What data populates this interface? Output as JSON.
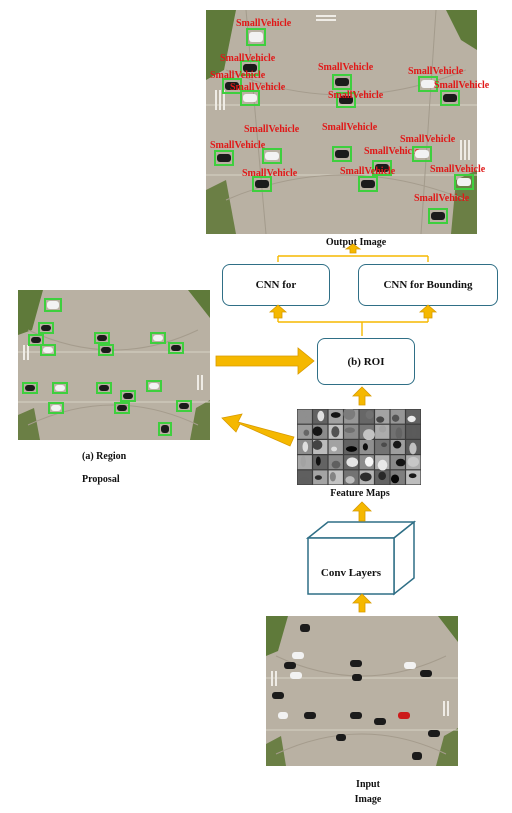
{
  "output_image": {
    "caption": "Output Image",
    "detections": [
      {
        "label": "SmallVehicle"
      },
      {
        "label": "SmallVehicle"
      },
      {
        "label": "SmallVehicle"
      },
      {
        "label": "SmallVehicle"
      },
      {
        "label": "SmallVehicle"
      },
      {
        "label": "SmallVehicle"
      },
      {
        "label": "SmallVehicle"
      },
      {
        "label": "SmallVehicle"
      },
      {
        "label": "SmallVehicle"
      },
      {
        "label": "SmallVehicle"
      },
      {
        "label": "SmallVehicle"
      },
      {
        "label": "SmallVehicle"
      },
      {
        "label": "SmallVehicle"
      },
      {
        "label": "SmallVehicle"
      },
      {
        "label": "SmallVehicle"
      },
      {
        "label": "SmallVehicle"
      },
      {
        "label": "SmallVehicle"
      }
    ]
  },
  "nodes": {
    "cnn_classifier": "CNN for",
    "cnn_bbox": "CNN for Bounding",
    "roi": "(b) ROI",
    "feature_maps": "Feature Maps",
    "conv_layers": "Conv Layers"
  },
  "region_proposal": {
    "caption_line1": "(a) Region",
    "caption_line2": "Proposal"
  },
  "input_image": {
    "caption_line1": "Input",
    "caption_line2": "Image"
  },
  "colors": {
    "arrow": "#f5b800",
    "arrow_outline": "#d89a00",
    "node_border": "#2f6f86",
    "detection_box": "#3ecf3e",
    "detection_label": "#e01818",
    "road": "#b9b1a3",
    "grass": "#5f7a3a"
  }
}
